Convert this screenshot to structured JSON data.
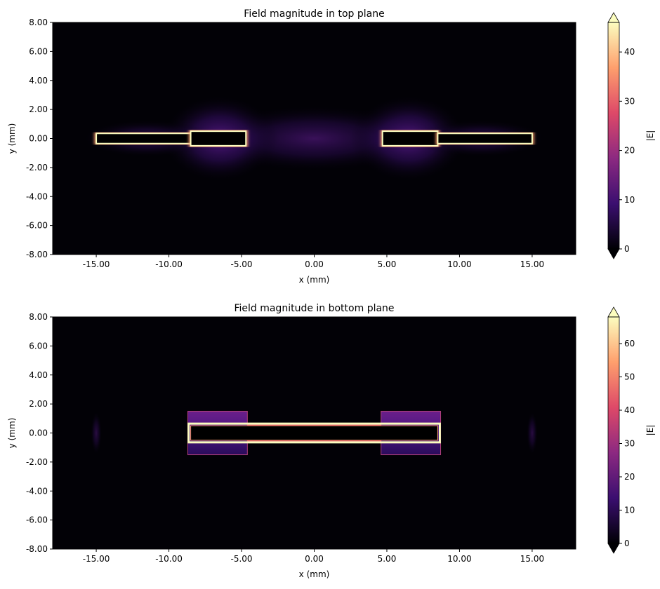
{
  "chart_data": [
    {
      "type": "heatmap",
      "title": "Field magnitude in top plane",
      "xlabel": "x (mm)",
      "ylabel": "y (mm)",
      "xlim": [
        -18,
        18
      ],
      "ylim": [
        -8,
        8
      ],
      "xticks": [
        "-15.00",
        "-10.00",
        "-5.00",
        "0.00",
        "5.00",
        "10.00",
        "15.00"
      ],
      "yticks": [
        "-8.00",
        "-6.00",
        "-4.00",
        "-2.00",
        "0.00",
        "2.00",
        "4.00",
        "6.00",
        "8.00"
      ],
      "colormap": "magma",
      "colorbar": {
        "label": "|E|",
        "range": [
          0,
          46
        ],
        "ticks": [
          "0",
          "10",
          "20",
          "30",
          "40"
        ],
        "extend": "both"
      },
      "conductors": [
        {
          "x": [
            -15,
            -8.5
          ],
          "y": [
            -0.35,
            0.35
          ]
        },
        {
          "x": [
            -8.5,
            -4.7
          ],
          "y": [
            -0.5,
            0.5
          ]
        },
        {
          "x": [
            4.7,
            8.5
          ],
          "y": [
            -0.5,
            0.5
          ]
        },
        {
          "x": [
            8.5,
            15
          ],
          "y": [
            -0.35,
            0.35
          ]
        }
      ]
    },
    {
      "type": "heatmap",
      "title": "Field magnitude in bottom plane",
      "xlabel": "x (mm)",
      "ylabel": "y (mm)",
      "xlim": [
        -18,
        18
      ],
      "ylim": [
        -8,
        8
      ],
      "xticks": [
        "-15.00",
        "-10.00",
        "-5.00",
        "0.00",
        "5.00",
        "10.00",
        "15.00"
      ],
      "yticks": [
        "-8.00",
        "-6.00",
        "-4.00",
        "-2.00",
        "0.00",
        "2.00",
        "4.00",
        "6.00",
        "8.00"
      ],
      "colormap": "magma",
      "colorbar": {
        "label": "|E|",
        "range": [
          0,
          68
        ],
        "ticks": [
          "0",
          "10",
          "20",
          "30",
          "40",
          "50",
          "60"
        ],
        "extend": "both"
      },
      "conductors": [
        {
          "x": [
            -8.5,
            8.5
          ],
          "y": [
            -0.5,
            0.5
          ]
        }
      ],
      "pads": [
        {
          "x": [
            -8.7,
            -4.6
          ],
          "y": [
            -1.5,
            1.5
          ]
        },
        {
          "x": [
            4.6,
            8.7
          ],
          "y": [
            -1.5,
            1.5
          ]
        }
      ]
    }
  ]
}
